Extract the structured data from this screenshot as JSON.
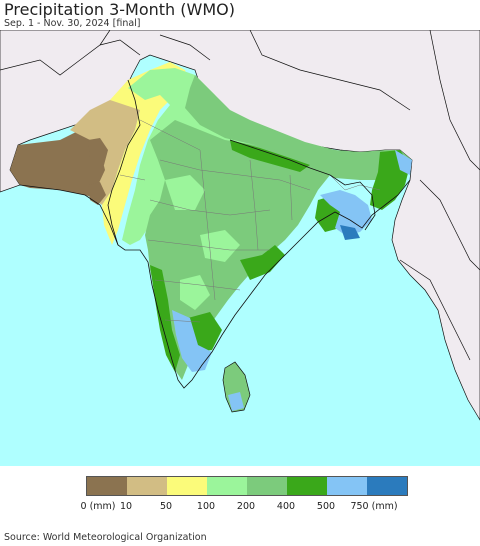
{
  "title": "Precipitation 3-Month (WMO)",
  "subtitle": "Sep. 1 - Nov. 30, 2024 [final]",
  "legend": {
    "colors": [
      "#8b7350",
      "#d2bd84",
      "#fbfb7a",
      "#9bf59b",
      "#7ccb7c",
      "#3aa81a",
      "#84c4f5",
      "#2b7bbd"
    ],
    "labels": [
      "0 (mm)",
      "10",
      "50",
      "100",
      "200",
      "400",
      "500",
      "750 (mm)"
    ]
  },
  "source": "Source: World Meteorological Organization",
  "map_colors": {
    "ocean": "#afffff",
    "outside_land": "#f0ebf0",
    "border": "#111111"
  }
}
